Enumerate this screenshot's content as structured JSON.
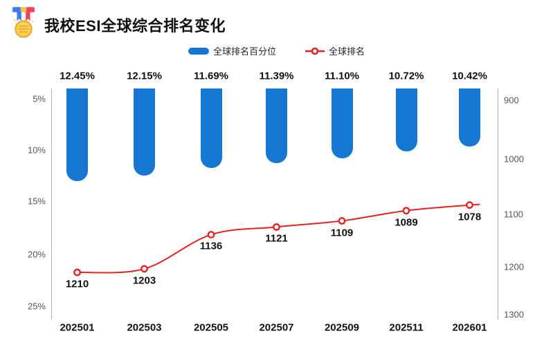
{
  "header": {
    "title": "我校ESI全球综合排名变化"
  },
  "legend": {
    "items": [
      {
        "label": "全球排名百分位",
        "type": "bar",
        "color": "#1677d3"
      },
      {
        "label": "全球排名",
        "type": "line",
        "color": "#e7211f"
      }
    ]
  },
  "chart_data": {
    "type": "bar",
    "subtype": "dual-axis bar + line, both value axes inverted",
    "title": "我校ESI全球综合排名变化",
    "categories": [
      "202501",
      "202503",
      "202505",
      "202507",
      "202509",
      "202511",
      "202601"
    ],
    "series": [
      {
        "name": "全球排名百分位",
        "type": "bar",
        "axis": "left",
        "unit": "%",
        "values": [
          12.45,
          12.15,
          11.69,
          11.39,
          11.1,
          10.72,
          10.42
        ],
        "labels": [
          "12.45%",
          "12.15%",
          "11.69%",
          "11.39%",
          "11.10%",
          "10.72%",
          "10.42%"
        ],
        "color": "#1677d3"
      },
      {
        "name": "全球排名",
        "type": "line",
        "axis": "right",
        "values": [
          1210,
          1203,
          1136,
          1121,
          1109,
          1089,
          1078
        ],
        "labels": [
          "1210",
          "1203",
          "1136",
          "1121",
          "1109",
          "1089",
          "1078"
        ],
        "color": "#e7211f"
      }
    ],
    "left_axis": {
      "ticks": [
        "5%",
        "10%",
        "15%",
        "20%",
        "25%"
      ],
      "inverted": true
    },
    "right_axis": {
      "ticks": [
        "900",
        "1000",
        "1100",
        "1200",
        "1300"
      ],
      "inverted": true
    },
    "grid": false,
    "legend_position": "top-center"
  }
}
